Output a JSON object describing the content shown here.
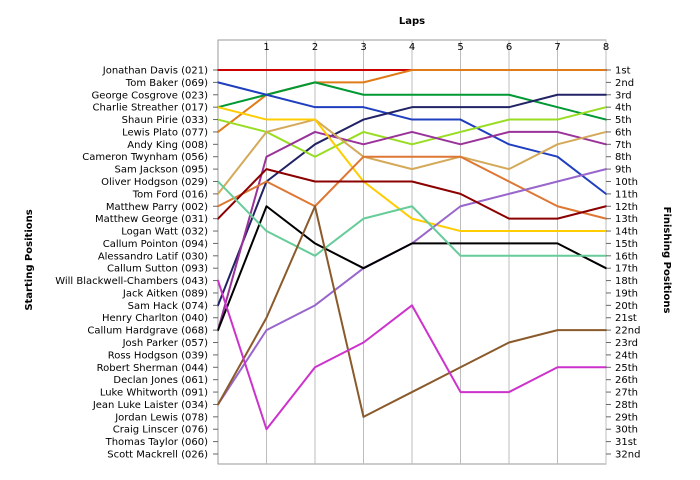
{
  "chart_data": {
    "type": "line",
    "xlabel": "Laps",
    "ylabel_left": "Starting Positions",
    "ylabel_right": "Finishing Positions",
    "x_ticks": [
      1,
      2,
      3,
      4,
      5,
      6,
      7,
      8
    ],
    "xlim": [
      0,
      8
    ],
    "ylim": [
      1,
      32
    ],
    "y_inverted": true,
    "grid": "vertical lines at each lap",
    "drivers": [
      "Jonathan Davis (021)",
      "Tom Baker (069)",
      "George Cosgrove (023)",
      "Charlie Streather (017)",
      "Shaun Pirie (033)",
      "Lewis Plato (077)",
      "Andy King (008)",
      "Cameron Twynham (056)",
      "Sam Jackson (095)",
      "Oliver Hodgson (029)",
      "Tom Ford (016)",
      "Matthew Parry (002)",
      "Matthew George (031)",
      "Logan Watt (032)",
      "Callum Pointon (094)",
      "Alessandro Latif (030)",
      "Callum Sutton (093)",
      "Will Blackwell-Chambers (043)",
      "Jack Aitken (089)",
      "Sam Hack (074)",
      "Henry Charlton (040)",
      "Callum Hardgrave (068)",
      "Josh Parker (057)",
      "Ross Hodgson (039)",
      "Robert Sherman (044)",
      "Declan Jones (061)",
      "Luke Whitworth (091)",
      "Jean Luke Laister (034)",
      "Jordan Lewis (078)",
      "Craig Linscer (076)",
      "Thomas Taylor (060)",
      "Scott Mackrell (026)"
    ],
    "finish_labels": [
      "1st",
      "2nd",
      "3rd",
      "4th",
      "5th",
      "6th",
      "7th",
      "8th",
      "9th",
      "10th",
      "11th",
      "12th",
      "13th",
      "14th",
      "15th",
      "16th",
      "17th",
      "18th",
      "19th",
      "20th",
      "21st",
      "22nd",
      "23rd",
      "24th",
      "25th",
      "26th",
      "27th",
      "28th",
      "29th",
      "30th",
      "31st",
      "32nd"
    ],
    "series": [
      {
        "color": "#cc0000",
        "values": [
          1,
          1,
          1,
          1,
          1,
          1,
          1,
          1,
          1
        ]
      },
      {
        "color": "#e07b1a",
        "values": [
          6,
          3,
          2,
          2,
          1,
          1,
          1,
          1,
          1
        ]
      },
      {
        "color": "#009933",
        "values": [
          4,
          3,
          2,
          3,
          3,
          3,
          3,
          4,
          5
        ]
      },
      {
        "color": "#1f3fbf",
        "values": [
          2,
          3,
          4,
          4,
          5,
          5,
          7,
          8,
          11
        ]
      },
      {
        "color": "#222266",
        "values": [
          20,
          10,
          7,
          5,
          4,
          4,
          4,
          3,
          3
        ]
      },
      {
        "color": "#99dd22",
        "values": [
          5,
          6,
          8,
          6,
          7,
          6,
          5,
          5,
          4
        ]
      },
      {
        "color": "#993399",
        "values": [
          22,
          8,
          6,
          7,
          6,
          7,
          6,
          6,
          7
        ]
      },
      {
        "color": "#d4a95a",
        "values": [
          11,
          6,
          5,
          8,
          9,
          8,
          9,
          7,
          6
        ]
      },
      {
        "color": "#ffcc00",
        "values": [
          4,
          5,
          5,
          10,
          13,
          14,
          14,
          14,
          14
        ]
      },
      {
        "color": "#dd7733",
        "values": [
          12,
          10,
          12,
          8,
          8,
          8,
          10,
          12,
          13
        ]
      },
      {
        "color": "#9966cc",
        "values": [
          28,
          22,
          20,
          17,
          15,
          12,
          11,
          10,
          9
        ]
      },
      {
        "color": "#8b0000",
        "values": [
          13,
          9,
          10,
          10,
          10,
          11,
          13,
          13,
          12
        ]
      },
      {
        "color": "#000000",
        "values": [
          22,
          12,
          15,
          17,
          15,
          15,
          15,
          15,
          17
        ]
      },
      {
        "color": "#66cc99",
        "values": [
          10,
          14,
          16,
          13,
          12,
          16,
          16,
          16,
          16
        ]
      },
      {
        "color": "#8b5a2b",
        "values": [
          28,
          21,
          12,
          29,
          27,
          25,
          23,
          22,
          22
        ]
      },
      {
        "color": "#cc33cc",
        "values": [
          18,
          30,
          25,
          23,
          20,
          27,
          27,
          25,
          25
        ]
      }
    ]
  }
}
